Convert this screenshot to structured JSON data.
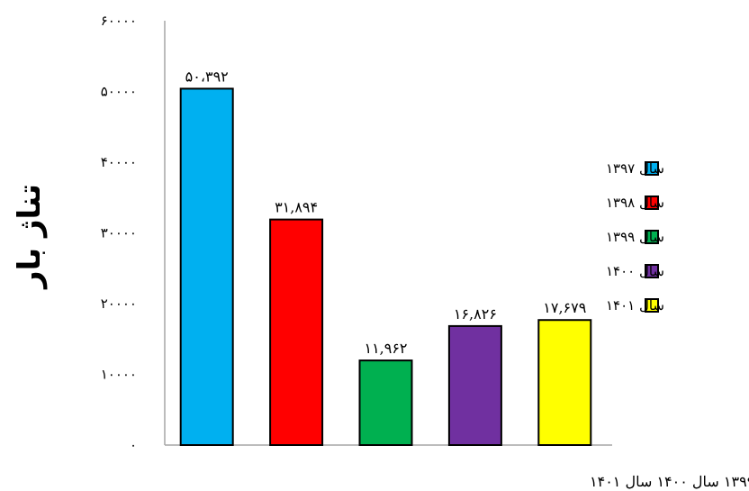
{
  "chart_data": {
    "type": "bar",
    "title": "",
    "ylabel": "تناژ بار",
    "xlabel": "",
    "categories": [
      "سال ۱۳۹۷",
      "سال ۱۳۹۸",
      "سال ۱۳۹۹",
      "سال ۱۴۰۰",
      "سال ۱۴۰۱"
    ],
    "values": [
      50392,
      31894,
      11962,
      16826,
      17679
    ],
    "value_labels": [
      "۵۰،۳۹۲",
      "۳۱,۸۹۴",
      "۱۱,۹۶۲",
      "۱۶,۸۲۶",
      "۱۷,۶۷۹"
    ],
    "colors": [
      "#00b0f0",
      "#ff0000",
      "#00b050",
      "#7030a0",
      "#ffff00"
    ],
    "ylim": [
      0,
      60000
    ],
    "yticks": [
      0,
      10000,
      20000,
      30000,
      40000,
      50000,
      60000
    ],
    "ytick_labels": [
      "۰",
      "۱۰۰۰۰",
      "۲۰۰۰۰",
      "۳۰۰۰۰",
      "۴۰۰۰۰",
      "۵۰۰۰۰",
      "۶۰۰۰۰"
    ],
    "grid": false,
    "legend": {
      "position": "right",
      "entries": [
        "سال ۱۳۹۷",
        "سال ۱۳۹۸",
        "سال ۱۳۹۹",
        "سال ۱۴۰۰",
        "سال ۱۴۰۱"
      ]
    }
  }
}
